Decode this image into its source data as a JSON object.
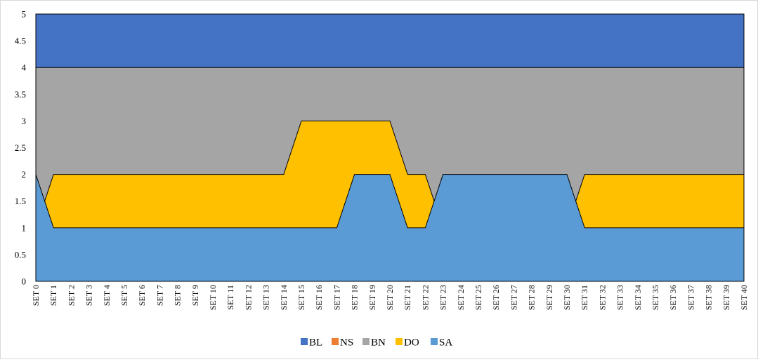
{
  "chart_data": {
    "type": "area",
    "stacked": false,
    "categories": [
      "SET 0",
      "SET 1",
      "SET 2",
      "SET 3",
      "SET 4",
      "SET 5",
      "SET 6",
      "SET 7",
      "SET 8",
      "SET 9",
      "SET 10",
      "SET 11",
      "SET 12",
      "SET 13",
      "SET 14",
      "SET 15",
      "SET 16",
      "SET 17",
      "SET 18",
      "SET 19",
      "SET 20",
      "SET 21",
      "SET 22",
      "SET 23",
      "SET 24",
      "SET 25",
      "SET 26",
      "SET 27",
      "SET 28",
      "SET 29",
      "SET 30",
      "SET 31",
      "SET 32",
      "SET 33",
      "SET 34",
      "SET 35",
      "SET 36",
      "SET 37",
      "SET 38",
      "SET 39",
      "SET 40"
    ],
    "ylim": [
      0,
      5
    ],
    "yticks": [
      "0",
      "0.5",
      "1",
      "1.5",
      "2",
      "2.5",
      "3",
      "3.5",
      "4",
      "4.5",
      "5"
    ],
    "ytick_values": [
      0,
      0.5,
      1,
      1.5,
      2,
      2.5,
      3,
      3.5,
      4,
      4.5,
      5
    ],
    "grid": false,
    "legend_position": "bottom",
    "series": [
      {
        "name": "BL",
        "color": "#4472C4",
        "values": [
          5,
          5,
          5,
          5,
          5,
          5,
          5,
          5,
          5,
          5,
          5,
          5,
          5,
          5,
          5,
          5,
          5,
          5,
          5,
          5,
          5,
          5,
          5,
          5,
          5,
          5,
          5,
          5,
          5,
          5,
          5,
          5,
          5,
          5,
          5,
          5,
          5,
          5,
          5,
          5,
          5
        ]
      },
      {
        "name": "NS",
        "color": "#ED7D31",
        "values": [
          0,
          0,
          0,
          0,
          0,
          0,
          0,
          0,
          0,
          0,
          0,
          0,
          0,
          0,
          0,
          0,
          0,
          0,
          0,
          0,
          0,
          0,
          0,
          0,
          0,
          0,
          0,
          0,
          0,
          0,
          0,
          0,
          0,
          0,
          0,
          0,
          0,
          0,
          0,
          0,
          0
        ]
      },
      {
        "name": "BN",
        "color": "#A5A5A5",
        "values": [
          4,
          4,
          4,
          4,
          4,
          4,
          4,
          4,
          4,
          4,
          4,
          4,
          4,
          4,
          4,
          4,
          4,
          4,
          4,
          4,
          4,
          4,
          4,
          4,
          4,
          4,
          4,
          4,
          4,
          4,
          4,
          4,
          4,
          4,
          4,
          4,
          4,
          4,
          4,
          4,
          4
        ]
      },
      {
        "name": "DO",
        "color": "#FFC000",
        "values": [
          1,
          2,
          2,
          2,
          2,
          2,
          2,
          2,
          2,
          2,
          2,
          2,
          2,
          2,
          2,
          3,
          3,
          3,
          3,
          3,
          3,
          2,
          2,
          1,
          1,
          1,
          1,
          1,
          1,
          1,
          1,
          2,
          2,
          2,
          2,
          2,
          2,
          2,
          2,
          2,
          2
        ]
      },
      {
        "name": "SA",
        "color": "#5B9BD5",
        "values": [
          2,
          1,
          1,
          1,
          1,
          1,
          1,
          1,
          1,
          1,
          1,
          1,
          1,
          1,
          1,
          1,
          1,
          1,
          2,
          2,
          2,
          1,
          1,
          2,
          2,
          2,
          2,
          2,
          2,
          2,
          2,
          1,
          1,
          1,
          1,
          1,
          1,
          1,
          1,
          1,
          1
        ]
      }
    ]
  }
}
